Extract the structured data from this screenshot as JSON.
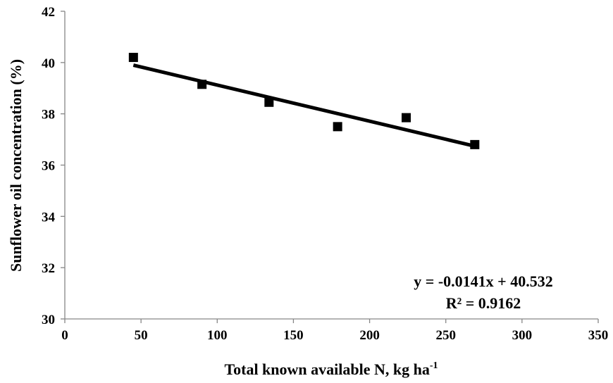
{
  "chart_data": {
    "type": "scatter",
    "title": "",
    "xlabel": "Total known available N, kg ha",
    "xlabel_superscript": "-1",
    "ylabel": "Sunflower oil concentration (%)",
    "xlim": [
      0,
      350
    ],
    "ylim": [
      30,
      42
    ],
    "x_ticks": [
      "0",
      "50",
      "100",
      "150",
      "200",
      "250",
      "300",
      "350"
    ],
    "y_ticks": [
      "30",
      "32",
      "34",
      "36",
      "38",
      "40",
      "42"
    ],
    "grid": false,
    "legend": "none",
    "series": [
      {
        "marker": "square",
        "color": "#000000",
        "x": [
          45,
          90,
          134,
          179,
          224,
          269
        ],
        "y": [
          40.2,
          39.15,
          38.45,
          37.5,
          37.85,
          36.8
        ]
      }
    ],
    "trendline": {
      "type": "linear",
      "slope": -0.0141,
      "intercept": 40.532,
      "x_range": [
        45,
        269
      ],
      "color": "#000000"
    },
    "annotations": {
      "equation": "y = -0.0141x + 40.532",
      "r_squared": "R² = 0.9162"
    }
  }
}
